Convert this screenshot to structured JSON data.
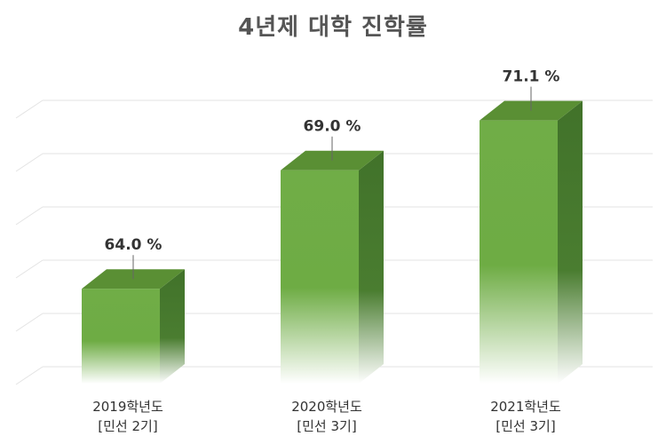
{
  "chart_data": {
    "type": "bar",
    "title": "4년제 대학 진학률",
    "categories": [
      [
        "2019학년도",
        "[민선 2기]"
      ],
      [
        "2020학년도",
        "[민선 3기]"
      ],
      [
        "2021학년도",
        "[민선 3기]"
      ]
    ],
    "values": [
      64.0,
      69.0,
      71.1
    ],
    "value_labels": [
      "64.0 %",
      "69.0 %",
      "71.1 %"
    ],
    "unit": "%",
    "ylim": [
      60,
      73
    ],
    "grid": true,
    "legend": "none",
    "colors": {
      "front": "#70ad47",
      "top": "#5a8f34",
      "side": "#41722a",
      "grid": "#e3e3e3"
    }
  }
}
